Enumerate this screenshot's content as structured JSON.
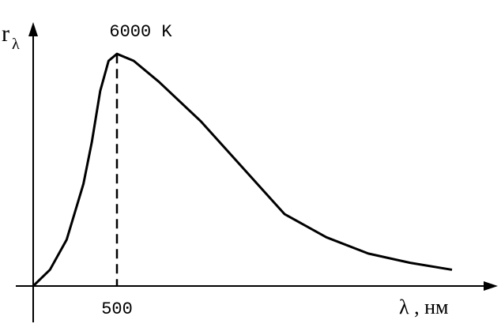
{
  "chart_data": {
    "type": "line",
    "annotation": "6000 K",
    "y_label": "r",
    "y_label_subscript": "λ",
    "x_label": "λ , нм",
    "x": [
      0,
      100,
      200,
      300,
      350,
      400,
      450,
      500,
      600,
      750,
      1000,
      1250,
      1500,
      1750,
      2000,
      2250,
      2500
    ],
    "series": [
      {
        "color": "#000000",
        "values": [
          0,
          7,
          20,
          44,
          62,
          84,
          97,
          100,
          97,
          88,
          71,
          51,
          31,
          21,
          14,
          10,
          7
        ]
      }
    ],
    "xlim": [
      0,
      2750
    ],
    "ylim": [
      0,
      113
    ],
    "xticks": [
      500
    ],
    "peak_index": 7
  }
}
